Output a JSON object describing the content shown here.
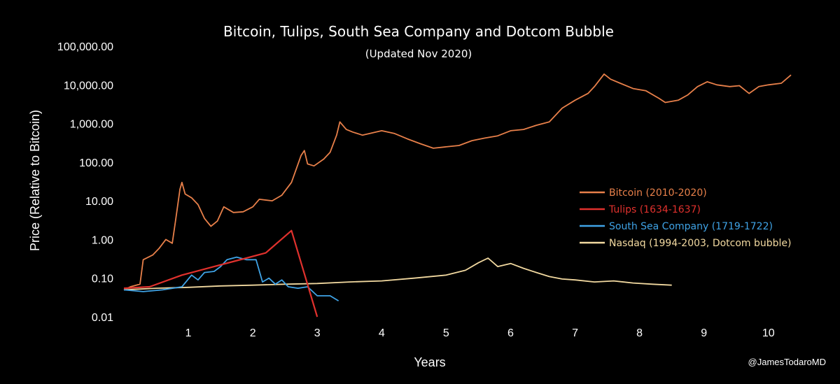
{
  "chart_data": {
    "type": "line",
    "title": "Bitcoin, Tulips, South Sea Company and Dotcom Bubble",
    "subtitle": "(Updated Nov 2020)",
    "xlabel": "Years",
    "ylabel": "Price (Relative to Bitcoin)",
    "credit": "@JamesTodaroMD",
    "y_scale": "log",
    "xlim": [
      0,
      10.35
    ],
    "ylim": [
      0.01,
      100000
    ],
    "x_ticks": [
      1,
      2,
      3,
      4,
      5,
      6,
      7,
      8,
      9,
      10
    ],
    "y_ticks": [
      {
        "value": 0.01,
        "label": "0.01"
      },
      {
        "value": 0.1,
        "label": "0.10"
      },
      {
        "value": 1,
        "label": "1.00"
      },
      {
        "value": 10,
        "label": "10.00"
      },
      {
        "value": 100,
        "label": "100.00"
      },
      {
        "value": 1000,
        "label": "1,000.00"
      },
      {
        "value": 10000,
        "label": "10,000.00"
      },
      {
        "value": 100000,
        "label": "100,000.00"
      }
    ],
    "grid": false,
    "legend_position": "right",
    "series": [
      {
        "name": "Bitcoin (2010-2020)",
        "color": "#e8804a",
        "points": [
          [
            0,
            0.05
          ],
          [
            0.1,
            0.06
          ],
          [
            0.25,
            0.07
          ],
          [
            0.3,
            0.3
          ],
          [
            0.45,
            0.4
          ],
          [
            0.55,
            0.6
          ],
          [
            0.65,
            1.0
          ],
          [
            0.75,
            0.8
          ],
          [
            0.8,
            3
          ],
          [
            0.87,
            20
          ],
          [
            0.9,
            30
          ],
          [
            0.95,
            15
          ],
          [
            1.05,
            12
          ],
          [
            1.15,
            8
          ],
          [
            1.25,
            3.5
          ],
          [
            1.35,
            2.2
          ],
          [
            1.45,
            3
          ],
          [
            1.55,
            7
          ],
          [
            1.7,
            5
          ],
          [
            1.85,
            5.2
          ],
          [
            2.0,
            7
          ],
          [
            2.1,
            11
          ],
          [
            2.3,
            10
          ],
          [
            2.45,
            14
          ],
          [
            2.6,
            30
          ],
          [
            2.75,
            150
          ],
          [
            2.8,
            200
          ],
          [
            2.85,
            90
          ],
          [
            2.95,
            80
          ],
          [
            3.1,
            120
          ],
          [
            3.2,
            180
          ],
          [
            3.3,
            500
          ],
          [
            3.35,
            1100
          ],
          [
            3.45,
            700
          ],
          [
            3.55,
            600
          ],
          [
            3.7,
            500
          ],
          [
            4.0,
            650
          ],
          [
            4.2,
            550
          ],
          [
            4.4,
            400
          ],
          [
            4.6,
            300
          ],
          [
            4.8,
            230
          ],
          [
            5.0,
            250
          ],
          [
            5.2,
            270
          ],
          [
            5.4,
            360
          ],
          [
            5.6,
            420
          ],
          [
            5.8,
            480
          ],
          [
            6.0,
            650
          ],
          [
            6.2,
            700
          ],
          [
            6.4,
            900
          ],
          [
            6.6,
            1100
          ],
          [
            6.8,
            2500
          ],
          [
            7.0,
            4000
          ],
          [
            7.2,
            6000
          ],
          [
            7.3,
            9000
          ],
          [
            7.45,
            19000
          ],
          [
            7.55,
            14000
          ],
          [
            7.7,
            11000
          ],
          [
            7.9,
            8000
          ],
          [
            8.1,
            7000
          ],
          [
            8.3,
            4500
          ],
          [
            8.4,
            3500
          ],
          [
            8.6,
            4000
          ],
          [
            8.75,
            5500
          ],
          [
            8.9,
            9000
          ],
          [
            9.05,
            12000
          ],
          [
            9.2,
            10000
          ],
          [
            9.4,
            9000
          ],
          [
            9.55,
            9500
          ],
          [
            9.7,
            6000
          ],
          [
            9.85,
            9000
          ],
          [
            10.0,
            10000
          ],
          [
            10.2,
            11000
          ],
          [
            10.35,
            18000
          ]
        ]
      },
      {
        "name": "Tulips (1634-1637)",
        "color": "#e0312d",
        "points": [
          [
            0,
            0.055
          ],
          [
            0.4,
            0.06
          ],
          [
            0.9,
            0.12
          ],
          [
            1.4,
            0.2
          ],
          [
            1.9,
            0.33
          ],
          [
            2.2,
            0.45
          ],
          [
            2.6,
            1.7
          ],
          [
            3.0,
            0.01
          ]
        ]
      },
      {
        "name": "South Sea Company (1719-1722)",
        "color": "#3fa3e6",
        "points": [
          [
            0,
            0.05
          ],
          [
            0.3,
            0.045
          ],
          [
            0.6,
            0.05
          ],
          [
            0.9,
            0.06
          ],
          [
            1.05,
            0.12
          ],
          [
            1.15,
            0.09
          ],
          [
            1.25,
            0.14
          ],
          [
            1.4,
            0.15
          ],
          [
            1.5,
            0.2
          ],
          [
            1.6,
            0.3
          ],
          [
            1.75,
            0.35
          ],
          [
            1.9,
            0.3
          ],
          [
            2.05,
            0.3
          ],
          [
            2.15,
            0.08
          ],
          [
            2.25,
            0.1
          ],
          [
            2.35,
            0.07
          ],
          [
            2.45,
            0.09
          ],
          [
            2.55,
            0.06
          ],
          [
            2.7,
            0.055
          ],
          [
            2.85,
            0.06
          ],
          [
            3.0,
            0.035
          ],
          [
            3.2,
            0.035
          ],
          [
            3.33,
            0.026
          ]
        ]
      },
      {
        "name": "Nasdaq (1994-2003, Dotcom bubble)",
        "color": "#f2d9a0",
        "points": [
          [
            0,
            0.05
          ],
          [
            0.5,
            0.055
          ],
          [
            1.0,
            0.058
          ],
          [
            1.5,
            0.063
          ],
          [
            2.0,
            0.066
          ],
          [
            2.5,
            0.07
          ],
          [
            3.0,
            0.073
          ],
          [
            3.5,
            0.08
          ],
          [
            4.0,
            0.085
          ],
          [
            4.5,
            0.1
          ],
          [
            5.0,
            0.12
          ],
          [
            5.3,
            0.16
          ],
          [
            5.5,
            0.25
          ],
          [
            5.65,
            0.33
          ],
          [
            5.8,
            0.2
          ],
          [
            6.0,
            0.24
          ],
          [
            6.2,
            0.18
          ],
          [
            6.4,
            0.14
          ],
          [
            6.6,
            0.11
          ],
          [
            6.8,
            0.095
          ],
          [
            7.0,
            0.09
          ],
          [
            7.3,
            0.08
          ],
          [
            7.6,
            0.085
          ],
          [
            7.9,
            0.075
          ],
          [
            8.2,
            0.07
          ],
          [
            8.5,
            0.066
          ]
        ]
      }
    ]
  }
}
